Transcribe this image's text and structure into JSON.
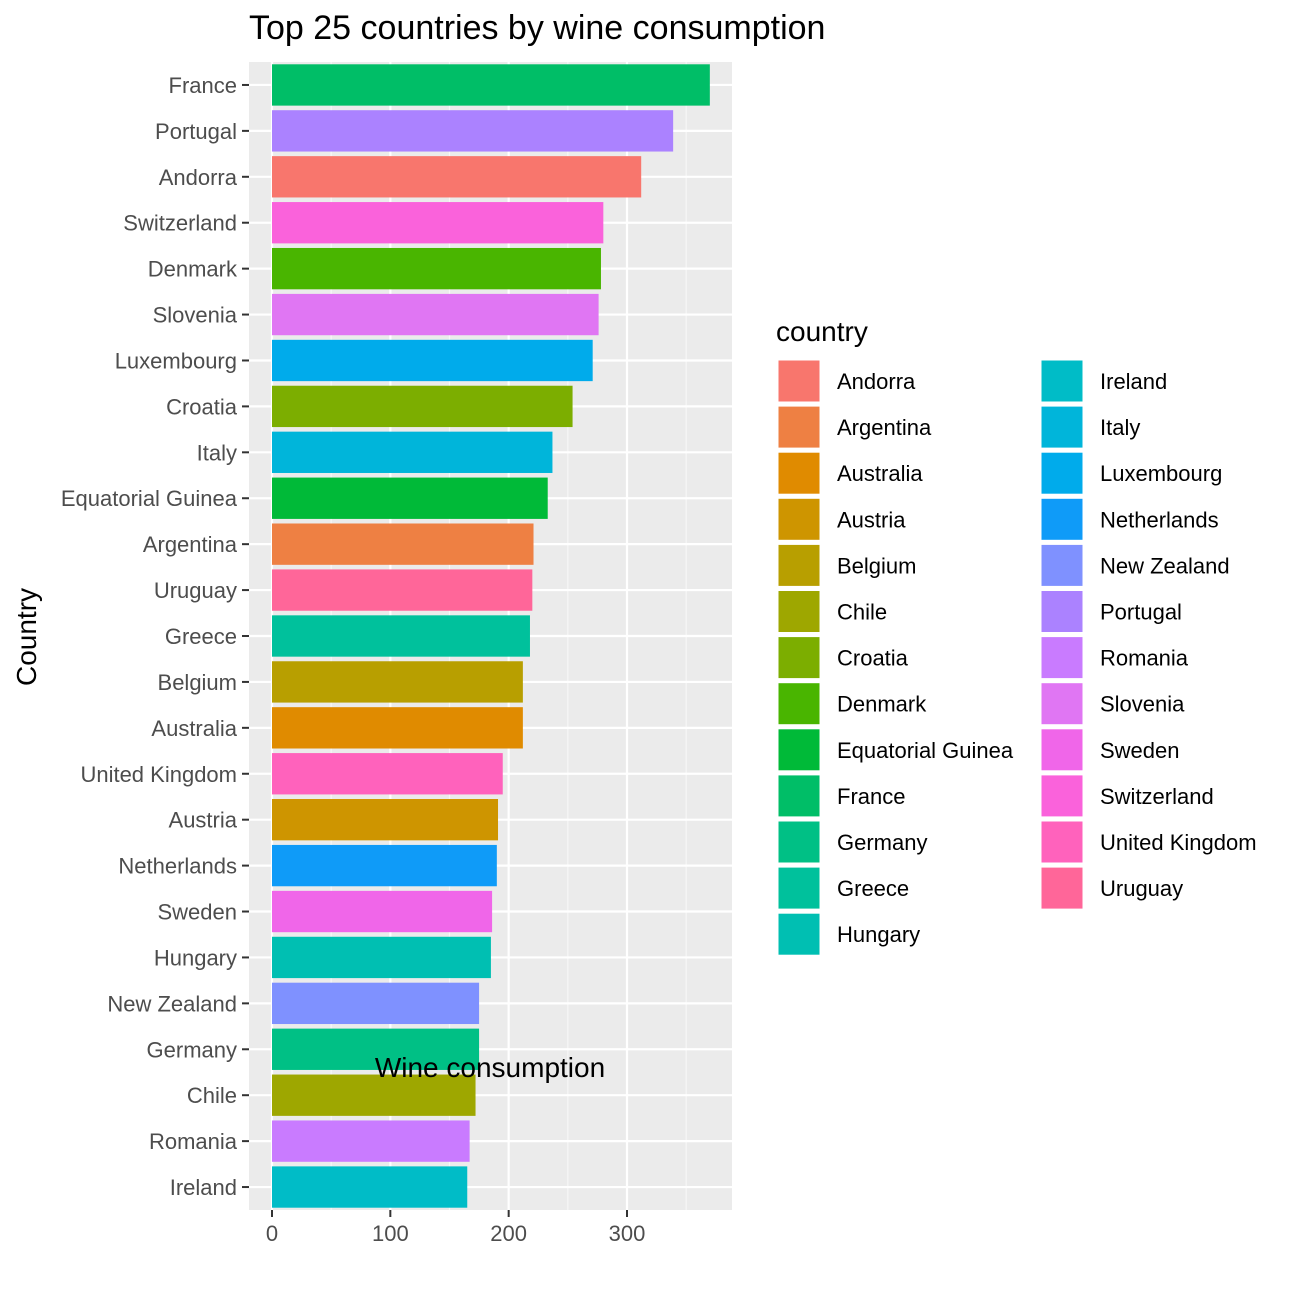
{
  "chart_data": {
    "type": "bar",
    "orientation": "horizontal",
    "title": "Top 25 countries by wine consumption",
    "xlabel": "Wine consumption",
    "ylabel": "Country",
    "xlim": [
      0,
      388
    ],
    "x_ticks": [
      0,
      100,
      200,
      300
    ],
    "x_tick_labels": [
      "0",
      "100",
      "200",
      "300"
    ],
    "grid": true,
    "legend_position": "right",
    "legend_title": "country",
    "categories": [
      "France",
      "Portugal",
      "Andorra",
      "Switzerland",
      "Denmark",
      "Slovenia",
      "Luxembourg",
      "Croatia",
      "Italy",
      "Equatorial Guinea",
      "Argentina",
      "Uruguay",
      "Greece",
      "Belgium",
      "Australia",
      "United Kingdom",
      "Austria",
      "Netherlands",
      "Sweden",
      "Hungary",
      "New Zealand",
      "Germany",
      "Chile",
      "Romania",
      "Ireland"
    ],
    "values": [
      370,
      339,
      312,
      280,
      278,
      276,
      271,
      254,
      237,
      233,
      221,
      220,
      218,
      212,
      212,
      195,
      191,
      190,
      186,
      185,
      175,
      175,
      172,
      167,
      165
    ],
    "legend_entries": [
      "Andorra",
      "Argentina",
      "Australia",
      "Austria",
      "Belgium",
      "Chile",
      "Croatia",
      "Denmark",
      "Equatorial Guinea",
      "France",
      "Germany",
      "Greece",
      "Hungary",
      "Ireland",
      "Italy",
      "Luxembourg",
      "Netherlands",
      "New Zealand",
      "Portugal",
      "Romania",
      "Slovenia",
      "Sweden",
      "Switzerland",
      "United Kingdom",
      "Uruguay"
    ],
    "colors": {
      "Andorra": "#F8766D",
      "Argentina": "#EE8043",
      "Australia": "#E08B00",
      "Austria": "#CE9500",
      "Belgium": "#B89F00",
      "Chile": "#9EA700",
      "Croatia": "#7CAE00",
      "Denmark": "#49B500",
      "Equatorial Guinea": "#00BA38",
      "France": "#00BE67",
      "Germany": "#00C085",
      "Greece": "#00C19C",
      "Hungary": "#00BFB2",
      "Ireland": "#00BCC7",
      "Italy": "#00B5DA",
      "Luxembourg": "#00ABEB",
      "Netherlands": "#0F9BF8",
      "New Zealand": "#7F91FF",
      "Portugal": "#AB82FF",
      "Romania": "#C97BFF",
      "Slovenia": "#E076F3",
      "Sweden": "#F066E9",
      "Switzerland": "#FA62DB",
      "United Kingdom": "#FF62BC",
      "Uruguay": "#FF6699"
    },
    "panel_background": "#EBEBEB",
    "grid_color": "#FFFFFF"
  }
}
